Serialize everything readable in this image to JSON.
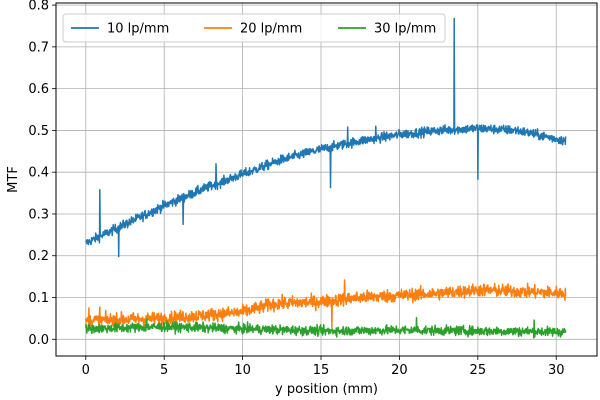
{
  "chart_data": {
    "type": "line",
    "xlabel": "y position (mm)",
    "ylabel": "MTF",
    "xlim": [
      -1.9,
      32.6
    ],
    "ylim": [
      -0.04,
      0.805
    ],
    "xticks": [
      "0",
      "5",
      "10",
      "15",
      "20",
      "25",
      "30"
    ],
    "yticks": [
      "0.0",
      "0.1",
      "0.2",
      "0.3",
      "0.4",
      "0.5",
      "0.6",
      "0.7",
      "0.8"
    ],
    "grid": true,
    "legend_position": "top-left",
    "x_range": [
      0,
      30.6
    ],
    "series": [
      {
        "name": "10 lp/mm",
        "color": "#1f77b4",
        "noise": 0.008,
        "trend": [
          [
            0,
            0.23
          ],
          [
            2.5,
            0.275
          ],
          [
            5,
            0.32
          ],
          [
            7.5,
            0.36
          ],
          [
            10,
            0.395
          ],
          [
            12.5,
            0.43
          ],
          [
            15,
            0.455
          ],
          [
            17.5,
            0.475
          ],
          [
            20,
            0.49
          ],
          [
            22.5,
            0.5
          ],
          [
            25,
            0.505
          ],
          [
            27.5,
            0.5
          ],
          [
            30.6,
            0.475
          ]
        ],
        "spikes": [
          [
            0.9,
            0.358
          ],
          [
            2.1,
            0.198
          ],
          [
            6.2,
            0.275
          ],
          [
            8.3,
            0.42
          ],
          [
            9.6,
            0.385
          ],
          [
            15.6,
            0.363
          ],
          [
            16.7,
            0.508
          ],
          [
            18.5,
            0.51
          ],
          [
            23.5,
            0.768
          ],
          [
            25.0,
            0.383
          ]
        ]
      },
      {
        "name": "20 lp/mm",
        "color": "#ff7f0e",
        "noise": 0.011,
        "trend": [
          [
            0,
            0.045
          ],
          [
            5,
            0.05
          ],
          [
            10,
            0.065
          ],
          [
            12,
            0.085
          ],
          [
            15,
            0.09
          ],
          [
            17.5,
            0.1
          ],
          [
            20,
            0.105
          ],
          [
            22.5,
            0.11
          ],
          [
            25,
            0.118
          ],
          [
            27.5,
            0.115
          ],
          [
            30.6,
            0.11
          ]
        ],
        "spikes": [
          [
            0.2,
            0.075
          ],
          [
            0.9,
            0.077
          ],
          [
            15.7,
            0.028
          ],
          [
            16.5,
            0.142
          ]
        ]
      },
      {
        "name": "30 lp/mm",
        "color": "#2ca02c",
        "noise": 0.008,
        "trend": [
          [
            0,
            0.025
          ],
          [
            5,
            0.03
          ],
          [
            10,
            0.025
          ],
          [
            15,
            0.02
          ],
          [
            20,
            0.022
          ],
          [
            25,
            0.02
          ],
          [
            30.6,
            0.018
          ]
        ],
        "spikes": [
          [
            3.9,
            0.048
          ],
          [
            21.1,
            0.052
          ],
          [
            28.6,
            0.046
          ]
        ]
      }
    ]
  }
}
